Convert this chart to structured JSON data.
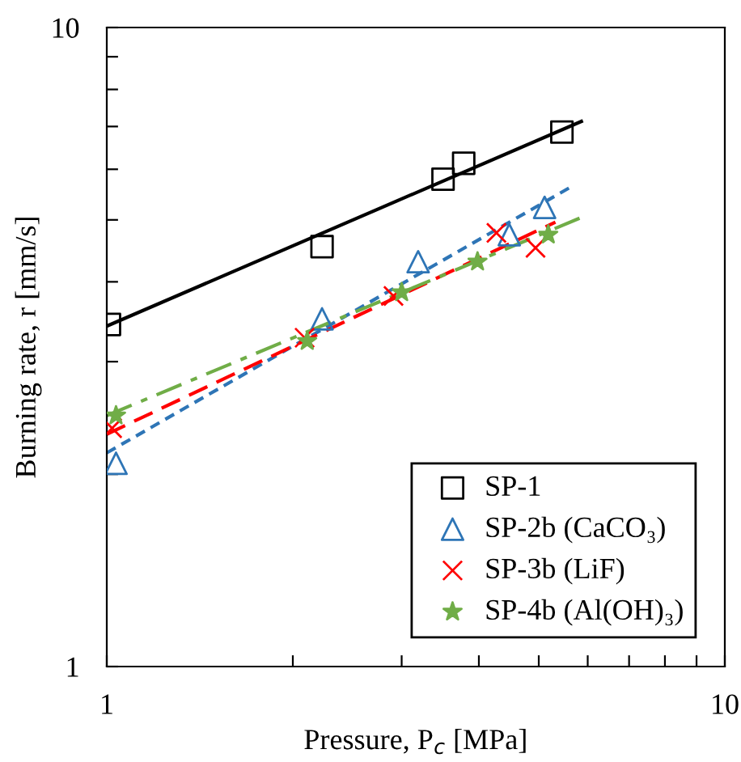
{
  "chart_data": {
    "type": "scatter",
    "xlabel": "Pressure, P$_{c}$ [MPa]",
    "ylabel": "Burning rate, r [mm/s]",
    "log": "xy",
    "grid": false,
    "legend": "bottom right",
    "xlim": [
      1,
      10
    ],
    "ylim": [
      1,
      10
    ],
    "xticks": [
      1,
      {
        "value": 2,
        "label": null
      },
      {
        "value": 3,
        "label": null
      },
      {
        "value": 4,
        "label": null
      },
      {
        "value": 5,
        "label": null
      },
      {
        "value": 6,
        "label": null
      },
      {
        "value": 7,
        "label": null
      },
      {
        "value": 8,
        "label": null
      },
      {
        "value": 9,
        "label": null
      },
      10
    ],
    "yticks": [
      1,
      {
        "value": 2,
        "label": null
      },
      {
        "value": 3,
        "label": null
      },
      {
        "value": 4,
        "label": null
      },
      {
        "value": 5,
        "label": null
      },
      {
        "value": 6,
        "label": null
      },
      {
        "value": 7,
        "label": null
      },
      {
        "value": 8,
        "label": null
      },
      {
        "value": 9,
        "label": null
      },
      10
    ],
    "series": [
      {
        "name": "SP-1",
        "marker": "square",
        "color": "#000000",
        "x": [
          1.01,
          2.23,
          3.5,
          3.78,
          5.45
        ],
        "values": [
          3.43,
          4.54,
          5.79,
          6.13,
          6.86
        ]
      },
      {
        "name": "SP-2b (CaCO₃)",
        "marker": "triangle",
        "color": "#2e75b6",
        "x": [
          1.035,
          2.23,
          3.19,
          4.48,
          5.11
        ],
        "values": [
          2.08,
          3.5,
          4.3,
          4.74,
          5.23
        ]
      },
      {
        "name": "SP-3b (LiF)",
        "marker": "cross",
        "color": "#ff0000",
        "x": [
          1.02,
          2.09,
          2.91,
          4.27,
          4.94
        ],
        "values": [
          2.36,
          3.27,
          3.8,
          4.77,
          4.52
        ]
      },
      {
        "name": "SP-4b (Al(OH)₃)",
        "marker": "star",
        "color": "#70ad47",
        "x": [
          1.035,
          2.11,
          3.0,
          3.98,
          5.18
        ],
        "values": [
          2.47,
          3.23,
          3.85,
          4.3,
          4.74
        ]
      },
      {
        "type": "line",
        "line_style": "solid",
        "color": "#000000",
        "x": [
          1.0,
          5.86
        ],
        "values": [
          3.41,
          7.13
        ]
      },
      {
        "type": "line",
        "line_style": "dotted",
        "color": "#2e75b6",
        "x": [
          1.0,
          5.6
        ],
        "values": [
          2.16,
          5.61
        ]
      },
      {
        "type": "line",
        "line_style": "dashed",
        "color": "#ff0000",
        "x": [
          1.0,
          5.32
        ],
        "values": [
          2.31,
          4.96
        ]
      },
      {
        "type": "line",
        "line_style": "dashdot",
        "color": "#70ad47",
        "x": [
          1.0,
          5.88
        ],
        "values": [
          2.47,
          5.05
        ]
      }
    ]
  }
}
